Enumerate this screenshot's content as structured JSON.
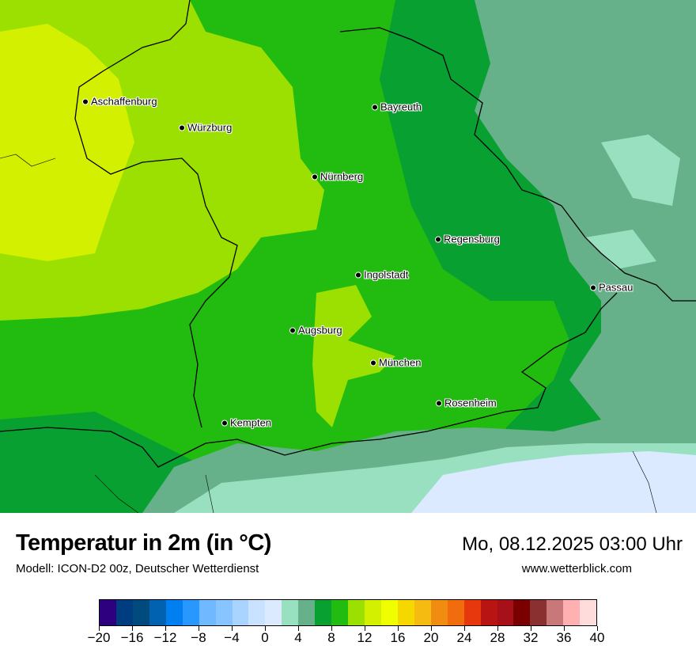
{
  "title": "Temperatur in 2m (in °C)",
  "subtitle": "Modell: ICON-D2 00z, Deutscher Wetterdienst",
  "datetime": "Mo, 08.12.2025 03:00 Uhr",
  "website": "www.wetterblick.com",
  "cities": [
    "Aschaffenburg",
    "Würzburg",
    "Bayreuth",
    "Nürnberg",
    "Regensburg",
    "Ingolstadt",
    "Passau",
    "Augsburg",
    "München",
    "Rosenheim",
    "Kempten"
  ],
  "legend": {
    "min": -20,
    "max": 40,
    "step": 2,
    "tick_labels": [
      "−20",
      "−16",
      "−12",
      "−8",
      "−4",
      "0",
      "4",
      "8",
      "12",
      "16",
      "20",
      "24",
      "28",
      "32",
      "36",
      "40"
    ],
    "colors": [
      "#2e0080",
      "#003c80",
      "#004a7e",
      "#0062b0",
      "#0080f0",
      "#2898ff",
      "#70b8ff",
      "#88c4ff",
      "#a8d4ff",
      "#c8e2ff",
      "#dbeaff",
      "#98e0c0",
      "#66b08a",
      "#08a030",
      "#22bb10",
      "#9be000",
      "#d2f000",
      "#f0ff00",
      "#f5d800",
      "#f5bb10",
      "#f08c10",
      "#f06c0c",
      "#e6380c",
      "#b81414",
      "#a61018",
      "#7a0000",
      "#8a3030",
      "#c87878",
      "#ffb0b0",
      "#ffdcdc"
    ]
  }
}
